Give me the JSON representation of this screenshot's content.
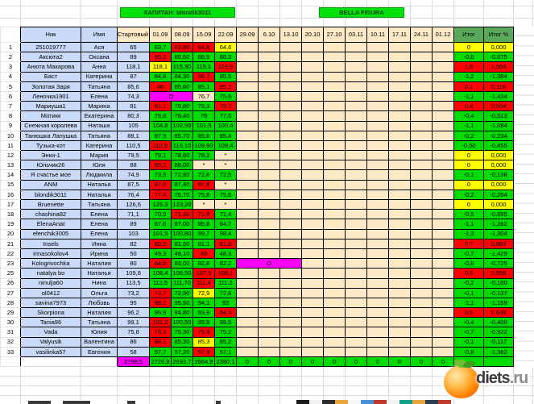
{
  "banners": {
    "captain_label": "КАПИТАН: blondik3011",
    "team_label": "BELLA FIGURA"
  },
  "table": {
    "headers": {
      "nick": "Ник",
      "name": "Имя",
      "start": "Стартовый вес",
      "dates": [
        "01.09",
        "08.09",
        "15.09",
        "22.09",
        "29.09",
        "6.10",
        "13.10",
        "20.10",
        "27.10",
        "03.11",
        "10.11",
        "17.11",
        "24.11",
        "01.12"
      ],
      "total": "Итог",
      "total_pct": "Итог %"
    },
    "rows": [
      {
        "n": "1",
        "nick": "251019777",
        "name": "Ася",
        "start": "65",
        "weeks": [
          {
            "v": "63,7",
            "c": "g"
          },
          {
            "v": "63,80",
            "c": "r"
          },
          {
            "v": "64,6",
            "c": "r"
          },
          {
            "v": "64,6",
            "c": "y"
          }
        ],
        "total": {
          "v": "0",
          "c": "y"
        },
        "pct": {
          "v": "0,000",
          "c": "y"
        }
      },
      {
        "n": "2",
        "nick": "Аксюта2",
        "name": "Оксана",
        "start": "89",
        "weeks": [
          {
            "v": "90,3",
            "c": "r"
          },
          {
            "v": "89,60",
            "c": "g"
          },
          {
            "v": "88,9",
            "c": "g"
          },
          {
            "v": "88,3",
            "c": "g"
          }
        ],
        "total": {
          "v": "-0,6",
          "c": "g"
        },
        "pct": {
          "v": "-0,675",
          "c": "g"
        }
      },
      {
        "n": "3",
        "nick": "Анюта Макарова",
        "name": "Анна",
        "start": "118,1",
        "weeks": [
          {
            "v": "118,1",
            "c": "y"
          },
          {
            "v": "115,30",
            "c": "g"
          },
          {
            "v": "115,1",
            "c": "g"
          },
          {
            "v": "116,9",
            "c": "r"
          }
        ],
        "total": {
          "v": "1,8",
          "c": "r"
        },
        "pct": {
          "v": "1,564",
          "c": "r"
        }
      },
      {
        "n": "4",
        "nick": "Баст",
        "name": "Катерина",
        "start": "87",
        "weeks": [
          {
            "v": "84,8",
            "c": "g"
          },
          {
            "v": "84,30",
            "c": "g"
          },
          {
            "v": "86,7",
            "c": "r"
          },
          {
            "v": "85,5",
            "c": "g"
          }
        ],
        "total": {
          "v": "-1,2",
          "c": "g"
        },
        "pct": {
          "v": "-1,384",
          "c": "g"
        }
      },
      {
        "n": "5",
        "nick": "Золотая Заря",
        "name": "Татьяна",
        "start": "85,6",
        "weeks": [
          {
            "v": "86",
            "c": "r"
          },
          {
            "v": "85,60",
            "c": "g"
          },
          {
            "v": "85,1",
            "c": "g"
          },
          {
            "v": "85,2",
            "c": "r"
          }
        ],
        "total": {
          "v": "0,1",
          "c": "r"
        },
        "pct": {
          "v": "0,118",
          "c": "r"
        }
      },
      {
        "n": "6",
        "nick": "Леночка1901",
        "name": "Елена",
        "start": "74,3",
        "weeks": [
          {
            "v": "О",
            "c": "m",
            "s": 2
          },
          {
            "v": "76,7",
            "c": "t"
          },
          {
            "v": "75,6",
            "c": "g"
          }
        ],
        "total": {
          "v": "-1,1",
          "c": "g"
        },
        "pct": {
          "v": "-1,434",
          "c": "g"
        }
      },
      {
        "n": "7",
        "nick": "Мариуша1",
        "name": "Марина",
        "start": "81",
        "weeks": [
          {
            "v": "81,1",
            "c": "r"
          },
          {
            "v": "79,80",
            "c": "g"
          },
          {
            "v": "79,3",
            "c": "g"
          },
          {
            "v": "79,7",
            "c": "r"
          }
        ],
        "total": {
          "v": "0,4",
          "c": "r"
        },
        "pct": {
          "v": "0,504",
          "c": "r"
        }
      },
      {
        "n": "8",
        "nick": "Мотикк",
        "name": "Екатерина",
        "start": "80,3",
        "weeks": [
          {
            "v": "79,8",
            "c": "g"
          },
          {
            "v": "78,40",
            "c": "g"
          },
          {
            "v": "78",
            "c": "g"
          },
          {
            "v": "77,6",
            "c": "g"
          }
        ],
        "total": {
          "v": "-0,4",
          "c": "g"
        },
        "pct": {
          "v": "-0,513",
          "c": "g"
        }
      },
      {
        "n": "9",
        "nick": "Снежная королева",
        "name": "Наташа",
        "start": "105",
        "weeks": [
          {
            "v": "104,8",
            "c": "g"
          },
          {
            "v": "102,90",
            "c": "g"
          },
          {
            "v": "101,5",
            "c": "g"
          },
          {
            "v": "100,4",
            "c": "g"
          }
        ],
        "total": {
          "v": "-1,1",
          "c": "g"
        },
        "pct": {
          "v": "-1,084",
          "c": "g"
        }
      },
      {
        "n": "10",
        "nick": "Танюшка Лапушка",
        "name": "Татьяна",
        "start": "88,1",
        "weeks": [
          {
            "v": "87,9",
            "c": "g"
          },
          {
            "v": "85,70",
            "c": "g"
          },
          {
            "v": "85,6",
            "c": "g"
          },
          {
            "v": "85,4",
            "c": "g"
          }
        ],
        "total": {
          "v": "-0,2",
          "c": "g"
        },
        "pct": {
          "v": "-0,234",
          "c": "g"
        }
      },
      {
        "n": "11",
        "nick": "Тузька-кот",
        "name": "Катерина",
        "start": "110,5",
        "weeks": [
          {
            "v": "110,9",
            "c": "r"
          },
          {
            "v": "110,10",
            "c": "g"
          },
          {
            "v": "109,90",
            "c": "g"
          },
          {
            "v": "109,4",
            "c": "g"
          }
        ],
        "total": {
          "v": "-0,50",
          "c": "g"
        },
        "pct": {
          "v": "-0,455",
          "c": "g"
        }
      },
      {
        "n": "12",
        "nick": "Энки-1",
        "name": "Мария",
        "start": "79,5",
        "weeks": [
          {
            "v": "79,1",
            "c": "g"
          },
          {
            "v": "78,60",
            "c": "g"
          },
          {
            "v": "78,2",
            "c": "g"
          },
          {
            "v": "*",
            "c": "t"
          }
        ],
        "total": {
          "v": "0",
          "c": "y"
        },
        "pct": {
          "v": "0,000",
          "c": "y"
        }
      },
      {
        "n": "13",
        "nick": "Юльчик26",
        "name": "Юля",
        "start": "88",
        "weeks": [
          {
            "v": "89,2",
            "c": "r"
          },
          {
            "v": "88,00",
            "c": "g"
          },
          {
            "v": "*",
            "c": "t"
          },
          {
            "v": "*",
            "c": "t"
          }
        ],
        "total": {
          "v": "0",
          "c": "y"
        },
        "pct": {
          "v": "0,000",
          "c": "y"
        }
      },
      {
        "n": "14",
        "nick": "Я счастье мое",
        "name": "Людмила",
        "start": "74,9",
        "weeks": [
          {
            "v": "73,5",
            "c": "g"
          },
          {
            "v": "72,80",
            "c": "g"
          },
          {
            "v": "72,6",
            "c": "g"
          },
          {
            "v": "72,5",
            "c": "g"
          }
        ],
        "total": {
          "v": "-0,1",
          "c": "g"
        },
        "pct": {
          "v": "-0,138",
          "c": "g"
        }
      },
      {
        "n": "15",
        "nick": "ANM",
        "name": "Наталья",
        "start": "87,5",
        "weeks": [
          {
            "v": "87,6",
            "c": "r"
          },
          {
            "v": "87,40",
            "c": "g"
          },
          {
            "v": "87,8",
            "c": "r"
          },
          {
            "v": "*",
            "c": "t"
          }
        ],
        "total": {
          "v": "0",
          "c": "y"
        },
        "pct": {
          "v": "0,000",
          "c": "y"
        }
      },
      {
        "n": "16",
        "nick": "blondik3011",
        "name": "Наталья",
        "start": "76,4",
        "weeks": [
          {
            "v": "77,4",
            "c": "r"
          },
          {
            "v": "76,70",
            "c": "g"
          },
          {
            "v": "75,8",
            "c": "g"
          },
          {
            "v": "75,6",
            "c": "g"
          }
        ],
        "total": {
          "v": "-0,2",
          "c": "g"
        },
        "pct": {
          "v": "-0,264",
          "c": "g"
        }
      },
      {
        "n": "17",
        "nick": "Bruenette",
        "name": "Татьяна",
        "start": "126,6",
        "weeks": [
          {
            "v": "125,3",
            "c": "g"
          },
          {
            "v": "123,20",
            "c": "g"
          },
          {
            "v": "*",
            "c": "t"
          },
          {
            "v": "*",
            "c": "t"
          }
        ],
        "total": {
          "v": "0",
          "c": "y"
        },
        "pct": {
          "v": "0,000",
          "c": "y"
        }
      },
      {
        "n": "18",
        "nick": "chashina82",
        "name": "Елена",
        "start": "71,1",
        "weeks": [
          {
            "v": "70,9",
            "c": "g"
          },
          {
            "v": "71,30",
            "c": "r"
          },
          {
            "v": "71,9",
            "c": "r"
          },
          {
            "v": "71,4",
            "c": "g"
          }
        ],
        "total": {
          "v": "-0,5",
          "c": "g"
        },
        "pct": {
          "v": "-0,695",
          "c": "g"
        }
      },
      {
        "n": "19",
        "nick": "ElenaAnat",
        "name": "Елена",
        "start": "89",
        "weeks": [
          {
            "v": "87,6",
            "c": "g"
          },
          {
            "v": "87,00",
            "c": "g"
          },
          {
            "v": "85,8",
            "c": "g"
          },
          {
            "v": "84,7",
            "c": "g"
          }
        ],
        "total": {
          "v": "-1,1",
          "c": "g"
        },
        "pct": {
          "v": "-1,282",
          "c": "g"
        }
      },
      {
        "n": "20",
        "nick": "elenchik3005",
        "name": "Елена",
        "start": "103",
        "weeks": [
          {
            "v": "101,5",
            "c": "g"
          },
          {
            "v": "100,80",
            "c": "g"
          },
          {
            "v": "99,7",
            "c": "g"
          },
          {
            "v": "98,4",
            "c": "g"
          }
        ],
        "total": {
          "v": "-1,3",
          "c": "g"
        },
        "pct": {
          "v": "-1,304",
          "c": "g"
        }
      },
      {
        "n": "21",
        "nick": "Insels",
        "name": "Инна",
        "start": "82",
        "weeks": [
          {
            "v": "82,5",
            "c": "r"
          },
          {
            "v": "81,60",
            "c": "g"
          },
          {
            "v": "81,1",
            "c": "g"
          },
          {
            "v": "81,8",
            "c": "r"
          }
        ],
        "total": {
          "v": "0,7",
          "c": "r"
        },
        "pct": {
          "v": "0,863",
          "c": "r"
        }
      },
      {
        "n": "22",
        "nick": "irinasokolov4",
        "name": "Ирина",
        "start": "50",
        "weeks": [
          {
            "v": "49,3",
            "c": "g"
          },
          {
            "v": "48,10",
            "c": "g"
          },
          {
            "v": "49",
            "c": "r"
          },
          {
            "v": "48,3",
            "c": "g"
          }
        ],
        "total": {
          "v": "-0,7",
          "c": "g"
        },
        "pct": {
          "v": "-1,429",
          "c": "g"
        }
      },
      {
        "n": "23",
        "nick": "Kologrivochka",
        "name": "Наталия",
        "start": "80",
        "weeks": [
          {
            "v": "84,5",
            "c": "r"
          },
          {
            "v": "83,00",
            "c": "g"
          },
          {
            "v": "82,8",
            "c": "g"
          },
          {
            "v": "82,2",
            "c": "g"
          },
          {
            "v": "О",
            "c": "m",
            "s": 3
          }
        ],
        "total": {
          "v": "-0,6",
          "c": "g"
        },
        "pct": {
          "v": "-0,725",
          "c": "g"
        }
      },
      {
        "n": "25",
        "nick": "natalya bo",
        "small": true,
        "name": "Наталья",
        "start": "109,8",
        "weeks": [
          {
            "v": "108,4",
            "c": "g"
          },
          {
            "v": "106,50",
            "c": "g"
          },
          {
            "v": "107,5",
            "c": "r"
          },
          {
            "v": "108,1",
            "c": "r"
          }
        ],
        "total": {
          "v": "0,6",
          "c": "r"
        },
        "pct": {
          "v": "0,558",
          "c": "r"
        }
      },
      {
        "n": "26",
        "nick": "ninulja60",
        "name": "Нина",
        "start": "113,5",
        "weeks": [
          {
            "v": "112,5",
            "c": "g"
          },
          {
            "v": "111,70",
            "c": "g"
          },
          {
            "v": "111,4",
            "c": "r"
          },
          {
            "v": "111,2",
            "c": "g"
          }
        ],
        "total": {
          "v": "-0,2",
          "c": "g"
        },
        "pct": {
          "v": "-0,180",
          "c": "g"
        }
      },
      {
        "n": "27",
        "nick": "ol0412",
        "name": "Ольга",
        "start": "73,2",
        "weeks": [
          {
            "v": "73,7",
            "c": "r"
          },
          {
            "v": "72,90",
            "c": "g"
          },
          {
            "v": "72,9",
            "c": "y"
          },
          {
            "v": "72,8",
            "c": "g"
          }
        ],
        "total": {
          "v": "-0,1",
          "c": "g"
        },
        "pct": {
          "v": "-0,137",
          "c": "g"
        }
      },
      {
        "n": "28",
        "nick": "savina7973",
        "name": "Любовь",
        "start": "95",
        "weeks": [
          {
            "v": "98,2",
            "c": "r"
          },
          {
            "v": "95,60",
            "c": "g"
          },
          {
            "v": "94,1",
            "c": "g"
          },
          {
            "v": "93",
            "c": "g"
          }
        ],
        "total": {
          "v": "-1,1",
          "c": "g"
        },
        "pct": {
          "v": "-1,169",
          "c": "g"
        }
      },
      {
        "n": "29",
        "nick": "Skorpiona",
        "name": "Наталия",
        "start": "96,2",
        "weeks": [
          {
            "v": "95,9",
            "c": "g"
          },
          {
            "v": "94,80",
            "c": "g"
          },
          {
            "v": "93,9",
            "c": "g"
          },
          {
            "v": "94,5",
            "c": "r"
          }
        ],
        "total": {
          "v": "0,6",
          "c": "r"
        },
        "pct": {
          "v": "0,639",
          "c": "r"
        }
      },
      {
        "n": "30",
        "nick": "Tania96",
        "name": "Татьяна",
        "start": "99,1",
        "weeks": [
          {
            "v": "101,2",
            "c": "r"
          },
          {
            "v": "100,50",
            "c": "g"
          },
          {
            "v": "99,9",
            "c": "g"
          },
          {
            "v": "99,5",
            "c": "g"
          }
        ],
        "total": {
          "v": "-0,4",
          "c": "g"
        },
        "pct": {
          "v": "-0,400",
          "c": "g"
        }
      },
      {
        "n": "31",
        "nick": "Vada",
        "name": "Юлия",
        "start": "75,8",
        "weeks": [
          {
            "v": "76,3",
            "c": "r"
          },
          {
            "v": "75,30",
            "c": "g"
          },
          {
            "v": "75,9",
            "c": "r"
          },
          {
            "v": "75,2",
            "c": "g"
          }
        ],
        "total": {
          "v": "-0,7",
          "c": "g"
        },
        "pct": {
          "v": "-0,922",
          "c": "g"
        }
      },
      {
        "n": "32",
        "nick": "Valyusik",
        "name": "Валентина",
        "start": "86",
        "weeks": [
          {
            "v": "86,1",
            "c": "r"
          },
          {
            "v": "85,30",
            "c": "g"
          },
          {
            "v": "85,3",
            "c": "y"
          },
          {
            "v": "85,2",
            "c": "g"
          }
        ],
        "total": {
          "v": "-0,1",
          "c": "g"
        },
        "pct": {
          "v": "-0,117",
          "c": "g"
        }
      },
      {
        "n": "33",
        "nick": "vasilinka57",
        "name": "Евгения",
        "start": "58",
        "weeks": [
          {
            "v": "57,7",
            "c": "g"
          },
          {
            "v": "57,20",
            "c": "g"
          },
          {
            "v": "57,9",
            "c": "r"
          },
          {
            "v": "57,1",
            "c": "g"
          }
        ],
        "total": {
          "v": "-0,8",
          "c": "g"
        },
        "pct": {
          "v": "-1,382",
          "c": "g"
        }
      }
    ],
    "totals": {
      "start": "2798,5",
      "weeks": [
        "2726,8",
        "2693,7",
        "2664,9",
        "2380,1",
        "0",
        "0",
        "0",
        "0",
        "0",
        "0",
        "0",
        "0",
        "0",
        "0"
      ],
      "total": "",
      "total_pct": ""
    }
  },
  "colors": {
    "gain": "#fd0002",
    "loss": "#00db00",
    "no_change": "#fffe00",
    "empty_cell": "#fde9c5",
    "skip_cell": "#fb00fb",
    "info_cell": "#c9daf8",
    "total_header": "#5aa95a",
    "banner": "#00e10b"
  },
  "watermark": {
    "brand": "diets",
    "suffix": ".ru"
  },
  "bottom_strip_colors": [
    "#1c1c1c",
    "#f2f2f2",
    "#2e2e2e",
    "#e8a33d",
    "#f7f7f7",
    "#4a90d9",
    "#c0392b",
    "#f2f2f2",
    "#16a085",
    "#e8a33d",
    "#2c3e50",
    "#c0392b"
  ]
}
